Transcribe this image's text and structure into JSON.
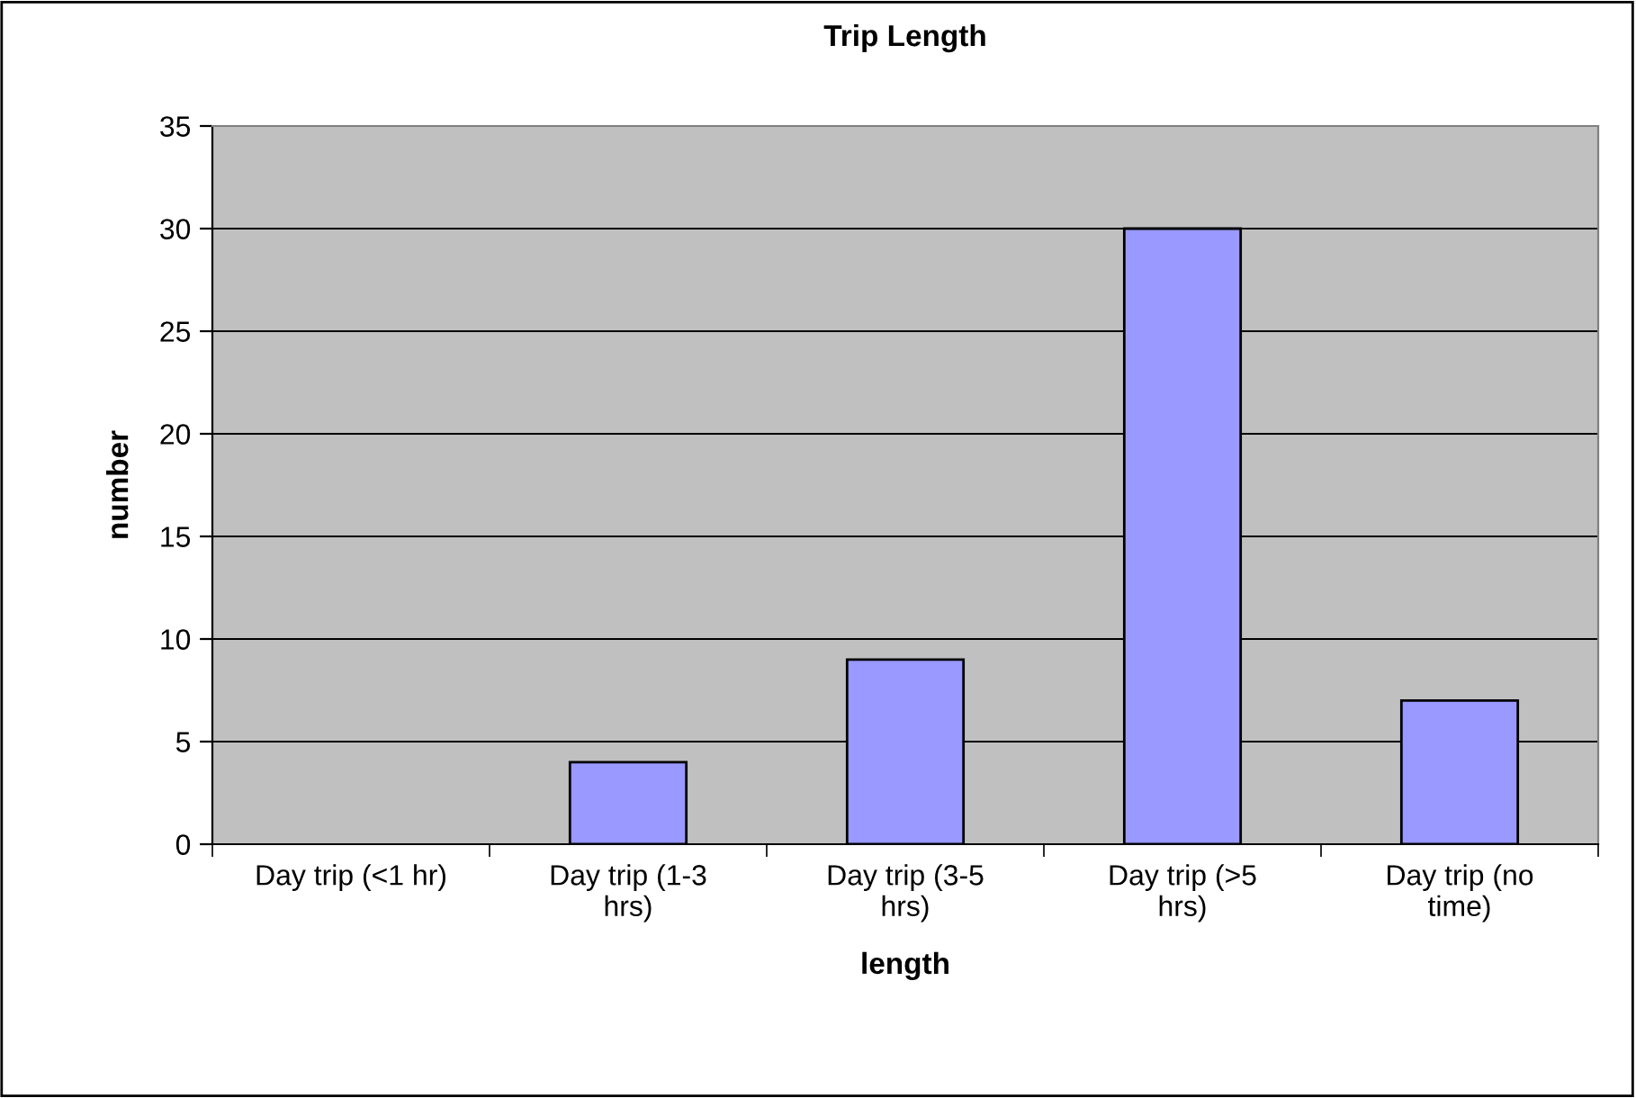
{
  "chart_data": {
    "type": "bar",
    "title": "Trip Length",
    "xlabel": "length",
    "ylabel": "number",
    "categories": [
      "Day trip (<1 hr)",
      "Day trip (1-3 hrs)",
      "Day trip (3-5 hrs)",
      "Day trip (>5 hrs)",
      "Day trip (no time)"
    ],
    "values": [
      0,
      4,
      9,
      30,
      7
    ],
    "color": "#9999ff",
    "ylim": [
      0,
      35
    ],
    "yticks": [
      0,
      5,
      10,
      15,
      20,
      25,
      30,
      35
    ],
    "grid": "y"
  }
}
